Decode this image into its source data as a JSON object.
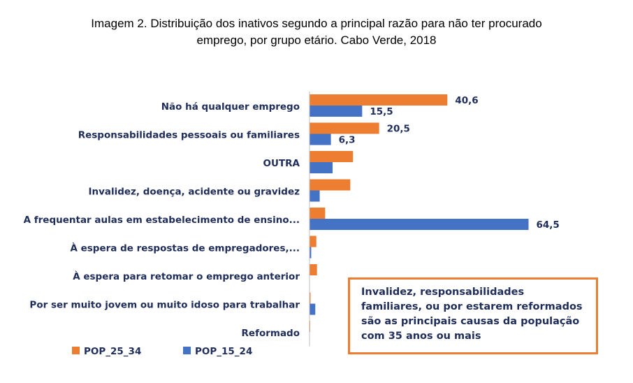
{
  "title_line1": "Imagem 2. Distribuição dos inativos segundo a principal razão para não ter procurado",
  "title_line2": "emprego, por grupo etário. Cabo Verde, 2018",
  "callout_text": "Invalidez, responsabilidades familiares, ou por estarem reformados são as principais causas da população com 35 anos ou mais",
  "colors": {
    "POP_25_34": "#ed7d31",
    "POP_15_24": "#4472c4",
    "axis": "#bfbfbf"
  },
  "chart_data": {
    "type": "bar",
    "orientation": "horizontal",
    "title": "Imagem 2. Distribuição dos inativos segundo a principal razão para não ter procurado emprego, por grupo etário. Cabo Verde, 2018",
    "categories": [
      "Não há qualquer emprego",
      "Responsabilidades pessoais ou familiares",
      "OUTRA",
      "Invalidez, doença, acidente ou gravidez",
      "A frequentar aulas em estabelecimento de ensino...",
      "À espera de respostas de empregadores,...",
      "À espera para retomar o emprego anterior",
      "Por ser muito jovem ou muito idoso para trabalhar",
      "Reformado"
    ],
    "series": [
      {
        "name": "POP_25_34",
        "values": [
          40.6,
          20.5,
          12.8,
          12.0,
          4.6,
          2.0,
          2.2,
          0.3,
          0.2
        ],
        "labels": [
          "40,6",
          "20,5",
          "",
          "",
          "",
          "",
          "",
          "",
          ""
        ]
      },
      {
        "name": "POP_15_24",
        "values": [
          15.5,
          6.3,
          6.8,
          3.0,
          64.5,
          0.5,
          0.0,
          1.7,
          0.0
        ],
        "labels": [
          "15,5",
          "6,3",
          "",
          "",
          "64,5",
          "",
          "",
          "",
          ""
        ]
      }
    ],
    "xlim": [
      0,
      70
    ],
    "grid": false,
    "legend": "bottom-left"
  }
}
